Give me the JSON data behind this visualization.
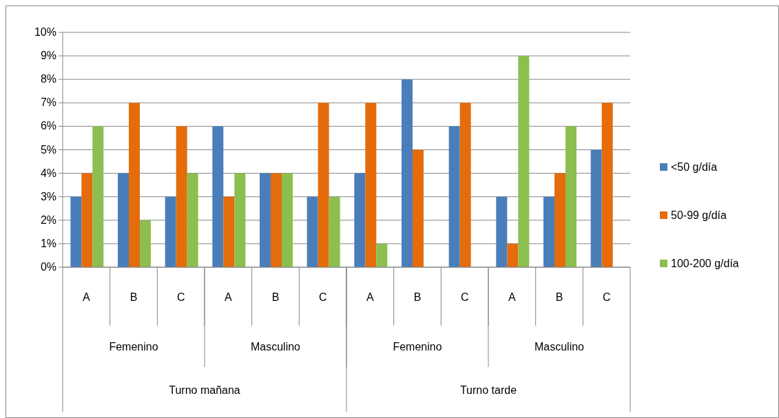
{
  "chart_data": {
    "type": "bar",
    "categories": [
      "A",
      "B",
      "C",
      "A",
      "B",
      "C",
      "A",
      "B",
      "C",
      "A",
      "B",
      "C"
    ],
    "annotations": [
      "Femenino",
      "Masculino",
      "Femenino",
      "Masculino",
      "Turno mañana",
      "Turno tarde"
    ],
    "series": [
      {
        "name": "<50 g/día",
        "color": "#4a7ebb",
        "values": [
          0.03,
          0.04,
          0.03,
          0.06,
          0.04,
          0.03,
          0.04,
          0.08,
          0.06,
          0.03,
          0.03,
          0.05
        ]
      },
      {
        "name": "50-99 g/día",
        "color": "#e46c0a",
        "values": [
          0.04,
          0.07,
          0.06,
          0.03,
          0.04,
          0.07,
          0.07,
          0.05,
          0.07,
          0.01,
          0.04,
          0.07
        ]
      },
      {
        "name": "100-200 g/día",
        "color": "#8cbf4f",
        "values": [
          0.06,
          0.02,
          0.04,
          0.04,
          0.04,
          0.03,
          0.01,
          0,
          0,
          0.09,
          0.06,
          0
        ]
      }
    ],
    "ylim": [
      0,
      0.1
    ],
    "yticks": [
      {
        "value": 0,
        "label": "0%"
      },
      {
        "value": 0.01,
        "label": "1%"
      },
      {
        "value": 0.02,
        "label": "2%"
      },
      {
        "value": 0.03,
        "label": "3%"
      },
      {
        "value": 0.04,
        "label": "4%"
      },
      {
        "value": 0.05,
        "label": "5%"
      },
      {
        "value": 0.06,
        "label": "6%"
      },
      {
        "value": 0.07,
        "label": "7%"
      },
      {
        "value": 0.08,
        "label": "8%"
      },
      {
        "value": 0.09,
        "label": "9%"
      },
      {
        "value": 0.1,
        "label": "10%"
      }
    ],
    "grid": "y",
    "legend": "right"
  }
}
